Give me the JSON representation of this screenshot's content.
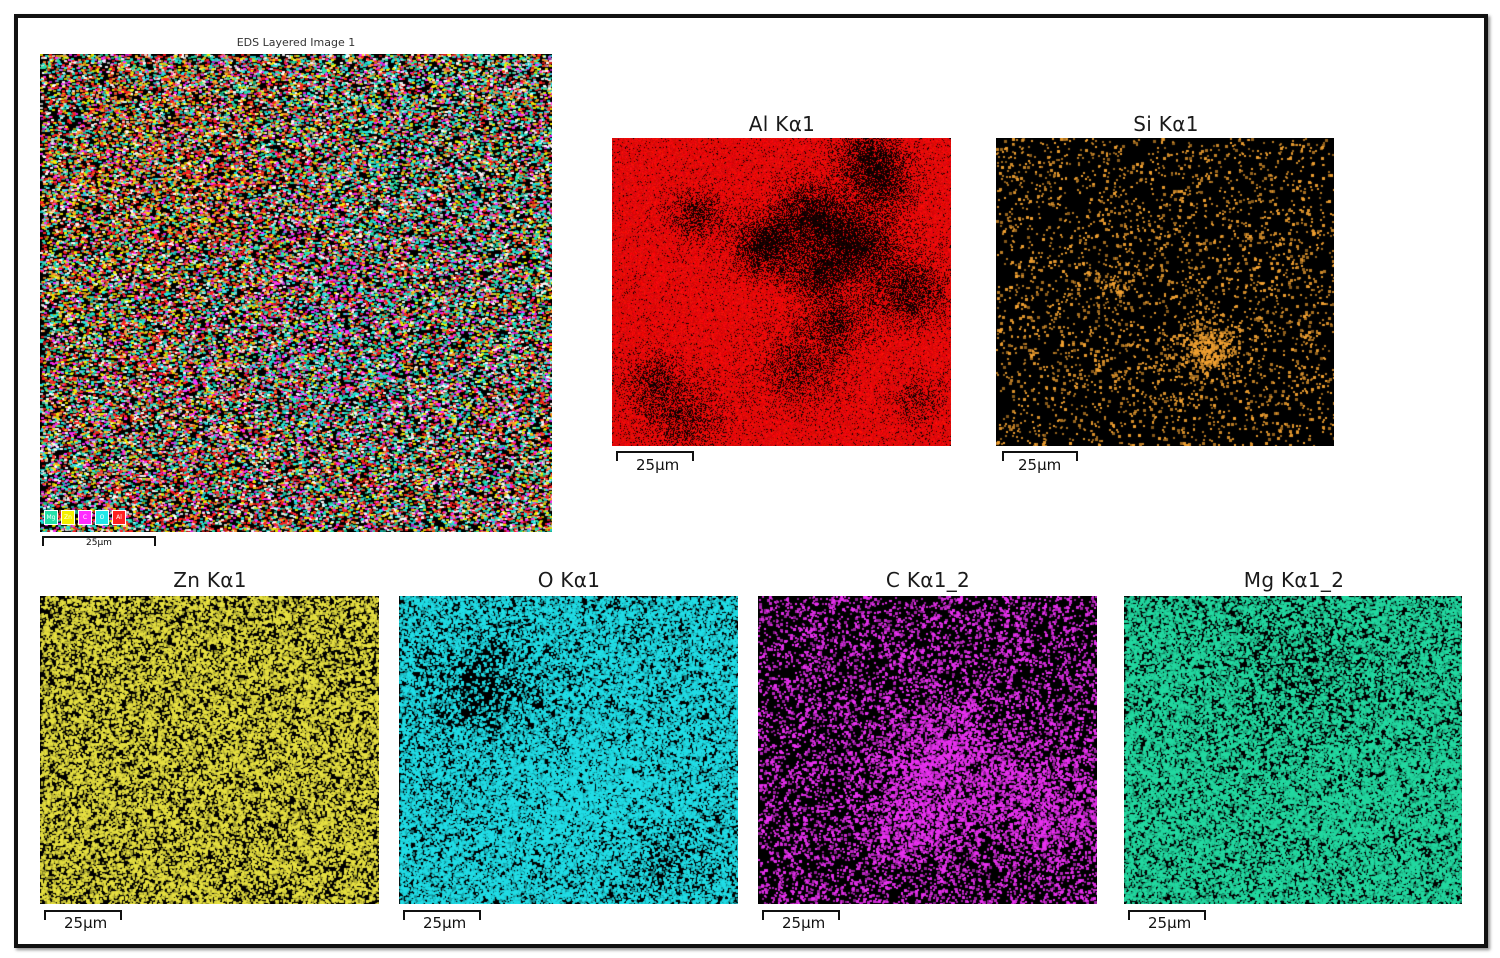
{
  "layered": {
    "title": "EDS Layered Image 1",
    "scale_label": "25µm",
    "legend": [
      {
        "element": "Mg",
        "color": "#22e0a8"
      },
      {
        "element": "Zn",
        "color": "#f5f000"
      },
      {
        "element": "C",
        "color": "#ff2cff"
      },
      {
        "element": "O",
        "color": "#20e8e8"
      },
      {
        "element": "Al",
        "color": "#ff2020"
      }
    ]
  },
  "maps": [
    {
      "id": "al",
      "title": "Al Kα1",
      "scale_label": "25µm",
      "color": "#ff1a1a"
    },
    {
      "id": "si",
      "title": "Si Kα1",
      "scale_label": "25µm",
      "color": "#f0a030"
    },
    {
      "id": "zn",
      "title": "Zn Kα1",
      "scale_label": "25µm",
      "color": "#e8e040"
    },
    {
      "id": "o",
      "title": "O Kα1",
      "scale_label": "25µm",
      "color": "#20e0e8"
    },
    {
      "id": "c",
      "title": "C Kα1_2",
      "scale_label": "25µm",
      "color": "#e830f0"
    },
    {
      "id": "mg",
      "title": "Mg Kα1_2",
      "scale_label": "25µm",
      "color": "#20d8a0"
    }
  ]
}
